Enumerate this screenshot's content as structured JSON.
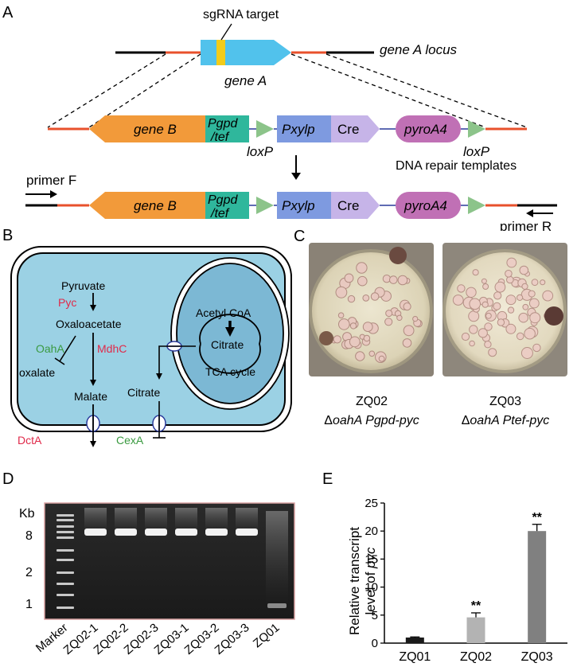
{
  "panel_labels": {
    "a": "A",
    "b": "B",
    "c": "C",
    "d": "D",
    "e": "E"
  },
  "panel_a": {
    "sgrna": "sgRNA target",
    "locus": "gene A locus",
    "gene_a": "gene A",
    "gene_b": "gene B",
    "pgpd_1": "Pgpd",
    "pgpd_2": "/tef",
    "pxylp": "Pxylp",
    "cre": "Cre",
    "pyroa4": "pyroA4",
    "loxp": "loxP",
    "templates": "DNA repair templates",
    "primer_f": "primer F",
    "primer_r": "primer R"
  },
  "panel_b": {
    "pyruvate": "Pyruvate",
    "pyc": "Pyc",
    "oxaloacetate": "Oxaloacetate",
    "oaha": "OahA",
    "mdhc": "MdhC",
    "oxalate": "oxalate",
    "malate": "Malate",
    "citrate_cyto": "Citrate",
    "acetyl_coa": "Acetyl CoA",
    "citrate_mito": "Citrate",
    "tca": "TCA cycle",
    "dcta": "DctA",
    "cexa": "CexA",
    "colors": {
      "red": "#e02a4a",
      "green": "#3a9a40",
      "cell": "#9bd1e4",
      "mito": "#7cb8d4"
    }
  },
  "panel_c": {
    "zq02_name": "ZQ02",
    "zq02_genotype_delta": "Δ",
    "zq02_genotype_gene": "oahA Pgpd-pyc",
    "zq03_name": "ZQ03",
    "zq03_genotype_delta": "Δ",
    "zq03_genotype_gene": "oahA Ptef-pyc"
  },
  "panel_d": {
    "kb": "Kb",
    "ladder": [
      "8",
      "2",
      "1"
    ],
    "lanes": [
      "Marker",
      "ZQ02-1",
      "ZQ02-2",
      "ZQ02-3",
      "ZQ03-1",
      "ZQ03-2",
      "ZQ03-3",
      "ZQ01"
    ]
  },
  "panel_e": {
    "ylabel_1": "Relative transcript",
    "ylabel_2": "level of ",
    "ylabel_3": "pyc"
  },
  "chart_data": {
    "type": "bar",
    "categories": [
      "ZQ01",
      "ZQ02",
      "ZQ03"
    ],
    "values": [
      1.0,
      4.6,
      20.0
    ],
    "errors": [
      0.1,
      0.8,
      1.2
    ],
    "significance": [
      "",
      "**",
      "**"
    ],
    "colors": [
      "#1a1a1a",
      "#b3b3b3",
      "#808080"
    ],
    "yticks": [
      "0",
      "5",
      "10",
      "15",
      "20",
      "25"
    ],
    "ylim": [
      0,
      25
    ],
    "ylabel": "Relative transcript level of pyc",
    "grid": false
  }
}
